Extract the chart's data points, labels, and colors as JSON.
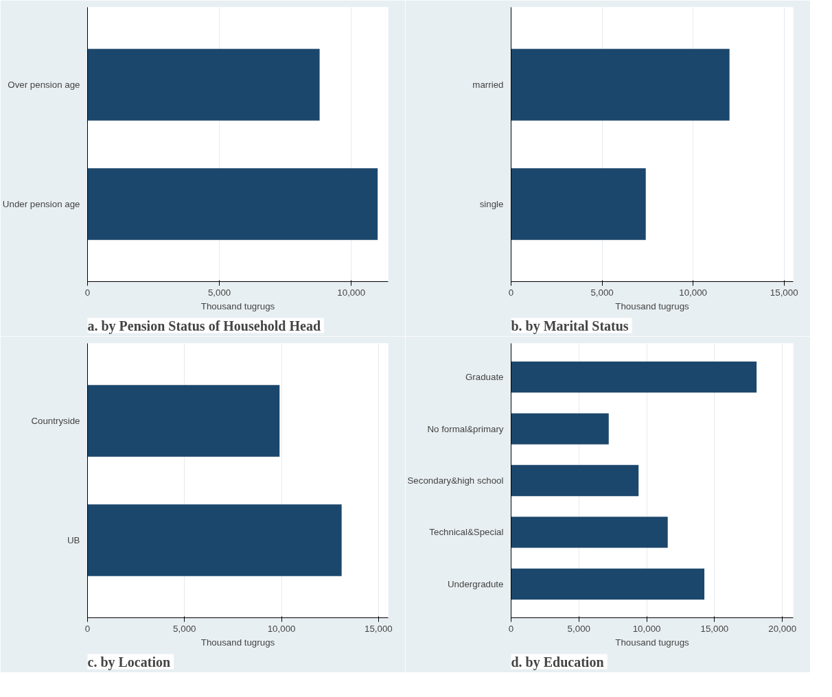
{
  "chart_data": [
    {
      "type": "bar",
      "orientation": "horizontal",
      "title": "a.  by Pension Status of Household Head",
      "xlabel": "Thousand tugrugs",
      "categories": [
        "Over pension age",
        "Under pension age"
      ],
      "values": [
        8800,
        11000
      ],
      "color": "#1c476c",
      "xlim": [
        0,
        11400
      ],
      "xticks": [
        {
          "value": 0,
          "label": "0"
        },
        {
          "value": 5000,
          "label": "5,000"
        },
        {
          "value": 10000,
          "label": "10,000"
        }
      ],
      "grid": "x"
    },
    {
      "type": "bar",
      "orientation": "horizontal",
      "title": "b.  by Marital Status",
      "xlabel": "Thousand tugrugs",
      "categories": [
        "married",
        "single"
      ],
      "values": [
        12000,
        7400
      ],
      "color": "#1c476c",
      "xlim": [
        0,
        15500
      ],
      "xticks": [
        {
          "value": 0,
          "label": "0"
        },
        {
          "value": 5000,
          "label": "5,000"
        },
        {
          "value": 10000,
          "label": "10,000"
        },
        {
          "value": 15000,
          "label": "15,000"
        }
      ],
      "grid": "x"
    },
    {
      "type": "bar",
      "orientation": "horizontal",
      "title": "c.  by Location",
      "xlabel": "Thousand tugrugs",
      "categories": [
        "Countryside",
        "UB"
      ],
      "values": [
        9900,
        13100
      ],
      "color": "#1c476c",
      "xlim": [
        0,
        15500
      ],
      "xticks": [
        {
          "value": 0,
          "label": "0"
        },
        {
          "value": 5000,
          "label": "5,000"
        },
        {
          "value": 10000,
          "label": "10,000"
        },
        {
          "value": 15000,
          "label": "15,000"
        }
      ],
      "grid": "x"
    },
    {
      "type": "bar",
      "orientation": "horizontal",
      "title": "d.  by Education",
      "xlabel": "Thousand tugrugs",
      "categories": [
        "Graduate",
        "No formal&primary",
        "Secondary&high school",
        "Technical&Special",
        "Undergradute"
      ],
      "values": [
        18100,
        7200,
        9400,
        11550,
        14250
      ],
      "color": "#1c476c",
      "xlim": [
        0,
        20800
      ],
      "xticks": [
        {
          "value": 0,
          "label": "0"
        },
        {
          "value": 5000,
          "label": "5,000"
        },
        {
          "value": 10000,
          "label": "10,000"
        },
        {
          "value": 15000,
          "label": "15,000"
        },
        {
          "value": 20000,
          "label": "20,000"
        }
      ],
      "grid": "x"
    }
  ]
}
